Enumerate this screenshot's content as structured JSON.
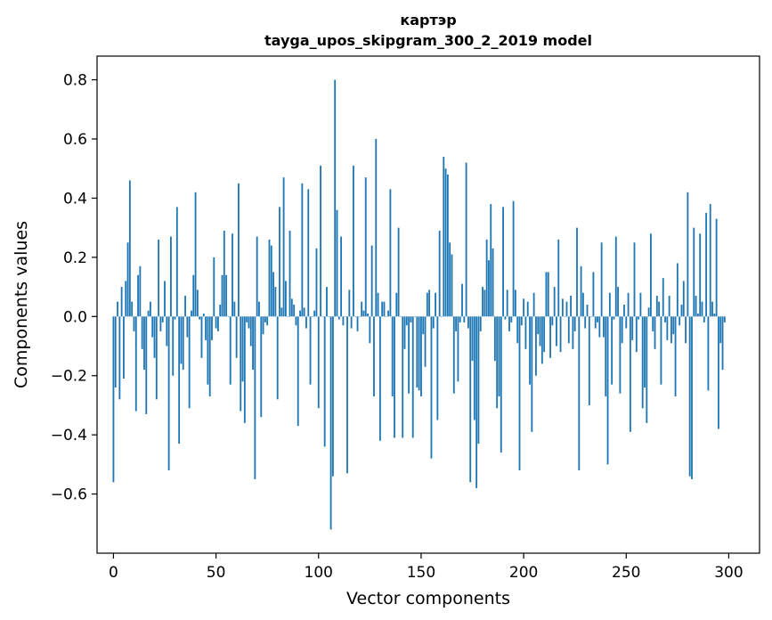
{
  "chart_data": {
    "type": "bar",
    "title_line1": "картэр",
    "title_line2": "tayga_upos_skipgram_300_2_2019 model",
    "xlabel": "Vector components",
    "ylabel": "Components values",
    "xlim": [
      -8,
      315
    ],
    "ylim": [
      -0.8,
      0.88
    ],
    "xticks": [
      0,
      50,
      100,
      150,
      200,
      250,
      300
    ],
    "xtick_labels": [
      "0",
      "50",
      "100",
      "150",
      "200",
      "250",
      "300"
    ],
    "yticks": [
      -0.6,
      -0.4,
      -0.2,
      0.0,
      0.2,
      0.4,
      0.6,
      0.8
    ],
    "ytick_labels": [
      "−0.6",
      "−0.4",
      "−0.2",
      "0.0",
      "0.2",
      "0.4",
      "0.6",
      "0.8"
    ],
    "bar_color": "#1f77b4",
    "grid": false,
    "values": [
      -0.56,
      -0.24,
      0.05,
      -0.28,
      0.1,
      -0.21,
      0.12,
      0.25,
      0.46,
      0.05,
      -0.05,
      -0.32,
      0.14,
      0.17,
      -0.11,
      -0.18,
      -0.33,
      0.02,
      0.05,
      -0.07,
      -0.14,
      -0.28,
      0.26,
      -0.05,
      -0.02,
      0.12,
      -0.1,
      -0.52,
      0.27,
      -0.2,
      -0.01,
      0.37,
      -0.43,
      -0.16,
      -0.18,
      0.07,
      -0.07,
      -0.31,
      0.02,
      0.14,
      0.42,
      0.09,
      -0.01,
      -0.14,
      0.01,
      -0.08,
      -0.23,
      -0.27,
      -0.08,
      0.2,
      -0.04,
      -0.05,
      0.04,
      0.14,
      0.29,
      0.14,
      0.0,
      -0.23,
      0.28,
      0.05,
      -0.14,
      0.45,
      -0.32,
      -0.22,
      -0.36,
      -0.02,
      -0.04,
      -0.1,
      -0.18,
      -0.55,
      0.27,
      0.05,
      -0.34,
      -0.06,
      -0.02,
      -0.03,
      0.26,
      0.24,
      0.15,
      0.1,
      -0.28,
      0.37,
      0.03,
      0.47,
      0.12,
      0.0,
      0.29,
      0.06,
      0.04,
      -0.03,
      -0.37,
      0.02,
      0.45,
      0.03,
      -0.04,
      0.43,
      -0.23,
      0.0,
      0.02,
      0.23,
      -0.31,
      0.51,
      0.0,
      -0.44,
      0.1,
      0.0,
      -0.72,
      -0.54,
      0.8,
      0.36,
      -0.01,
      0.27,
      -0.03,
      0.0,
      -0.53,
      0.09,
      -0.04,
      0.51,
      0.0,
      -0.05,
      0.0,
      0.05,
      0.02,
      0.47,
      0.01,
      -0.09,
      0.24,
      -0.27,
      0.6,
      0.08,
      -0.42,
      0.05,
      0.05,
      0.0,
      0.02,
      0.43,
      -0.27,
      -0.41,
      0.08,
      0.3,
      0.0,
      -0.41,
      -0.11,
      -0.03,
      -0.26,
      -0.02,
      -0.41,
      0.0,
      -0.24,
      -0.25,
      -0.27,
      -0.06,
      -0.17,
      0.08,
      0.09,
      -0.48,
      -0.04,
      0.08,
      -0.35,
      0.29,
      0.0,
      0.54,
      0.5,
      0.48,
      0.25,
      0.21,
      -0.26,
      -0.05,
      -0.22,
      -0.02,
      0.11,
      -0.02,
      0.52,
      -0.04,
      -0.56,
      -0.15,
      -0.35,
      -0.58,
      -0.43,
      -0.05,
      0.1,
      0.09,
      0.26,
      0.19,
      0.38,
      0.23,
      -0.15,
      -0.31,
      -0.27,
      -0.46,
      0.37,
      -0.01,
      0.09,
      -0.05,
      -0.02,
      0.39,
      0.09,
      -0.09,
      -0.52,
      -0.03,
      0.06,
      -0.11,
      0.05,
      -0.23,
      -0.39,
      0.08,
      -0.2,
      -0.06,
      -0.1,
      -0.16,
      -0.12,
      0.15,
      0.15,
      -0.14,
      -0.03,
      0.1,
      -0.1,
      0.26,
      -0.12,
      0.06,
      0.0,
      0.05,
      -0.09,
      0.07,
      -0.11,
      -0.05,
      0.3,
      -0.52,
      0.17,
      0.08,
      -0.04,
      0.04,
      -0.3,
      0.0,
      0.15,
      -0.04,
      -0.02,
      -0.07,
      0.25,
      -0.07,
      -0.27,
      -0.5,
      0.08,
      -0.23,
      -0.01,
      0.27,
      0.1,
      -0.26,
      -0.09,
      0.04,
      -0.04,
      0.08,
      -0.39,
      -0.08,
      0.25,
      -0.12,
      -0.01,
      0.08,
      -0.31,
      -0.24,
      -0.36,
      0.03,
      0.28,
      -0.05,
      -0.11,
      0.07,
      0.05,
      -0.23,
      0.13,
      -0.02,
      -0.08,
      0.07,
      -0.09,
      -0.06,
      -0.27,
      0.18,
      -0.03,
      0.04,
      0.12,
      -0.09,
      0.42,
      -0.54,
      -0.55,
      0.3,
      0.07,
      0.01,
      0.28,
      0.05,
      -0.02,
      0.35,
      -0.25,
      0.38,
      0.05,
      0.01,
      0.33,
      -0.38,
      -0.09,
      -0.18,
      -0.02
    ]
  }
}
